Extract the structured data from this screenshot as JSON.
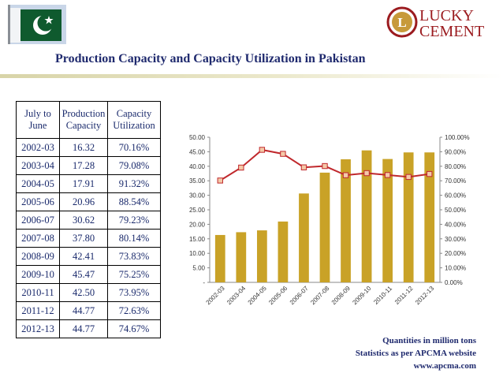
{
  "header": {
    "title": "Production Capacity and Capacity Utilization in Pakistan",
    "logo_text_line1": "LUCKY",
    "logo_text_line2": "CEMENT",
    "logo_letter": "L"
  },
  "table": {
    "headers": [
      "July to June",
      "Production Capacity",
      "Capacity Utilization"
    ],
    "rows": [
      [
        "2002-03",
        "16.32",
        "70.16%"
      ],
      [
        "2003-04",
        "17.28",
        "79.08%"
      ],
      [
        "2004-05",
        "17.91",
        "91.32%"
      ],
      [
        "2005-06",
        "20.96",
        "88.54%"
      ],
      [
        "2006-07",
        "30.62",
        "79.23%"
      ],
      [
        "2007-08",
        "37.80",
        "80.14%"
      ],
      [
        "2008-09",
        "42.41",
        "73.83%"
      ],
      [
        "2009-10",
        "45.47",
        "75.25%"
      ],
      [
        "2010-11",
        "42.50",
        "73.95%"
      ],
      [
        "2011-12",
        "44.77",
        "72.63%"
      ],
      [
        "2012-13",
        "44.77",
        "74.67%"
      ]
    ]
  },
  "chart_data": {
    "type": "bar",
    "categories": [
      "2002-03",
      "2003-04",
      "2004-05",
      "2005-06",
      "2006-07",
      "2007-08",
      "2008-09",
      "2009-10",
      "2010-11",
      "2011-12",
      "2012-13"
    ],
    "series": [
      {
        "type": "bar",
        "axis": "left",
        "values": [
          16.32,
          17.28,
          17.91,
          20.96,
          30.62,
          37.8,
          42.41,
          45.47,
          42.5,
          44.77,
          44.77
        ]
      },
      {
        "type": "line",
        "axis": "right",
        "values": [
          70.16,
          79.08,
          91.32,
          88.54,
          79.23,
          80.14,
          73.83,
          75.25,
          73.95,
          72.63,
          74.67
        ]
      }
    ],
    "ylim_left": [
      0,
      50
    ],
    "ylim_right": [
      0,
      100
    ],
    "yticks_left": [
      "-",
      "5.00",
      "10.00",
      "15.00",
      "20.00",
      "25.00",
      "30.00",
      "35.00",
      "40.00",
      "45.00",
      "50.00"
    ],
    "yticks_right": [
      "0.00%",
      "10.00%",
      "20.00%",
      "30.00%",
      "40.00%",
      "50.00%",
      "60.00%",
      "70.00%",
      "80.00%",
      "90.00%",
      "100.00%"
    ],
    "grid": false,
    "colors": {
      "bar": "#c9a227",
      "line": "#c0282c",
      "marker_fill": "#f4c9a8"
    }
  },
  "notes": {
    "line1": "Quantities in million tons",
    "line2": "Statistics as per APCMA website",
    "line3": "www.apcma.com"
  }
}
